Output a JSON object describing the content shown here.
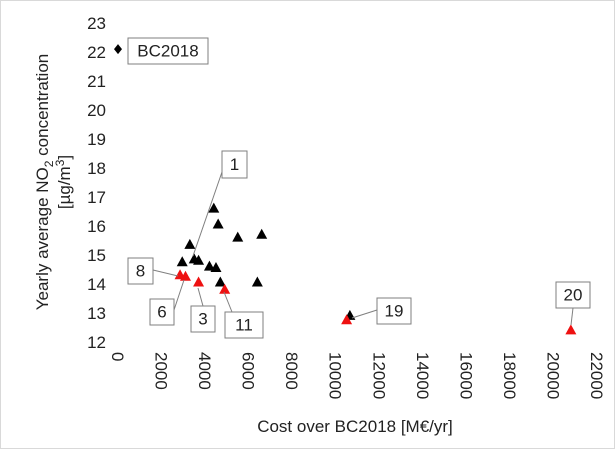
{
  "chart_data": {
    "type": "scatter",
    "xlabel": "Cost over BC2018 [M€/yr]",
    "ylabel": {
      "line1": [
        "Yearly average NO",
        "2",
        " concentration"
      ],
      "line2": [
        "[µg/m",
        "3",
        "]"
      ]
    },
    "xlim": [
      0,
      22000
    ],
    "xticks": [
      0,
      2000,
      4000,
      6000,
      8000,
      10000,
      12000,
      14000,
      16000,
      18000,
      20000,
      22000
    ],
    "ylim": [
      12,
      23
    ],
    "yticks": [
      12,
      13,
      14,
      15,
      16,
      17,
      18,
      19,
      20,
      21,
      22,
      23
    ],
    "grid": false,
    "series": [
      {
        "color": "#000000",
        "marker": "diamond",
        "x": [
          0
        ],
        "values": [
          22.1
        ]
      },
      {
        "color": "#000000",
        "marker": "triangle",
        "x": [
          4400,
          4600,
          6600,
          5500,
          3300,
          2950,
          3500,
          3700,
          4200,
          4500,
          6400,
          4700,
          10650
        ],
        "values": [
          16.6,
          16.05,
          15.7,
          15.6,
          15.35,
          14.75,
          14.85,
          14.8,
          14.6,
          14.55,
          14.05,
          14.05,
          12.9
        ]
      },
      {
        "color": "#ee1111",
        "marker": "triangle",
        "x": [
          2850,
          3100,
          3700,
          4900,
          10500,
          20800
        ],
        "values": [
          14.3,
          14.25,
          14.05,
          13.8,
          12.75,
          12.4
        ]
      }
    ],
    "annotations": [
      "BC2018",
      "1",
      "8",
      "6",
      "3",
      "11",
      "19",
      "20"
    ]
  }
}
